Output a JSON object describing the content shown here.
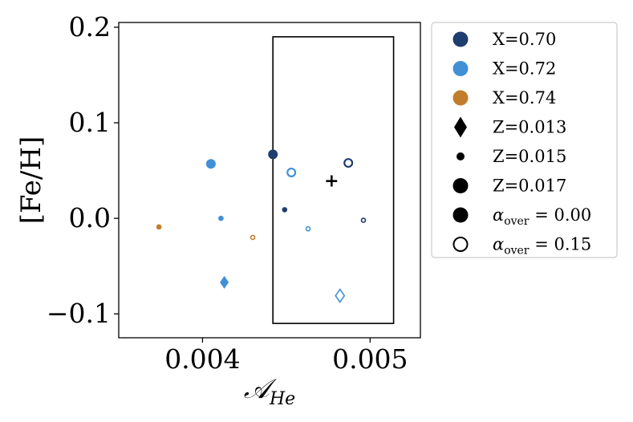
{
  "chart_data": {
    "type": "scatter",
    "xlabel": "𝒜",
    "xlabel_sub": "He",
    "ylabel": "[Fe/H]",
    "xlim": [
      0.0035,
      0.0053
    ],
    "ylim": [
      -0.125,
      0.205
    ],
    "x_ticks": [
      {
        "value": 0.004,
        "label": "0.004"
      },
      {
        "value": 0.005,
        "label": "0.005"
      }
    ],
    "y_ticks": [
      {
        "value": 0.2,
        "label": "0.2"
      },
      {
        "value": 0.1,
        "label": "0.1"
      },
      {
        "value": 0.0,
        "label": "0.0"
      },
      {
        "value": -0.1,
        "label": "−0.1"
      }
    ],
    "grid": false,
    "box": {
      "x": [
        0.00442,
        0.00514
      ],
      "y": [
        -0.11,
        0.19
      ]
    },
    "cross_marker": {
      "x": 0.00477,
      "y": 0.04,
      "label": "+"
    },
    "colors": {
      "X=0.70": "#1f3d6e",
      "X=0.72": "#4190d6",
      "X=0.74": "#c17d2a"
    },
    "points": [
      {
        "x": 0.00405,
        "y": 0.057,
        "X": 0.72,
        "Z": 0.017,
        "alpha_over": 0.0
      },
      {
        "x": 0.00411,
        "y": 0.0,
        "X": 0.72,
        "Z": 0.015,
        "alpha_over": 0.0
      },
      {
        "x": 0.00413,
        "y": -0.067,
        "X": 0.72,
        "Z": 0.013,
        "alpha_over": 0.0
      },
      {
        "x": 0.00374,
        "y": -0.009,
        "X": 0.74,
        "Z": 0.015,
        "alpha_over": 0.0
      },
      {
        "x": 0.0043,
        "y": -0.02,
        "X": 0.74,
        "Z": 0.015,
        "alpha_over": 0.15
      },
      {
        "x": 0.00442,
        "y": 0.067,
        "X": 0.7,
        "Z": 0.017,
        "alpha_over": 0.0
      },
      {
        "x": 0.00449,
        "y": 0.009,
        "X": 0.7,
        "Z": 0.015,
        "alpha_over": 0.0
      },
      {
        "x": 0.00453,
        "y": 0.048,
        "X": 0.72,
        "Z": 0.017,
        "alpha_over": 0.15
      },
      {
        "x": 0.00463,
        "y": -0.011,
        "X": 0.72,
        "Z": 0.015,
        "alpha_over": 0.15
      },
      {
        "x": 0.00487,
        "y": 0.058,
        "X": 0.7,
        "Z": 0.017,
        "alpha_over": 0.15
      },
      {
        "x": 0.00482,
        "y": -0.081,
        "X": 0.72,
        "Z": 0.013,
        "alpha_over": 0.15
      },
      {
        "x": 0.00496,
        "y": -0.002,
        "X": 0.7,
        "Z": 0.015,
        "alpha_over": 0.15
      }
    ],
    "legend": {
      "placement": "outside-right",
      "entries": [
        {
          "label": "X=0.70",
          "marker": "circle-filled",
          "color": "#1f3d6e"
        },
        {
          "label": "X=0.72",
          "marker": "circle-filled",
          "color": "#4190d6"
        },
        {
          "label": "X=0.74",
          "marker": "circle-filled",
          "color": "#c17d2a"
        },
        {
          "label": "Z=0.013",
          "marker": "diamond-filled",
          "color": "#000000"
        },
        {
          "label": "Z=0.015",
          "marker": "circle-small",
          "color": "#000000"
        },
        {
          "label": "Z=0.017",
          "marker": "circle-large",
          "color": "#000000"
        },
        {
          "label": "α",
          "sub": "over",
          "tail": " = 0.00",
          "marker": "circle-filled",
          "color": "#000000"
        },
        {
          "label": "α",
          "sub": "over",
          "tail": " = 0.15",
          "marker": "circle-open",
          "color": "#000000"
        }
      ]
    }
  }
}
